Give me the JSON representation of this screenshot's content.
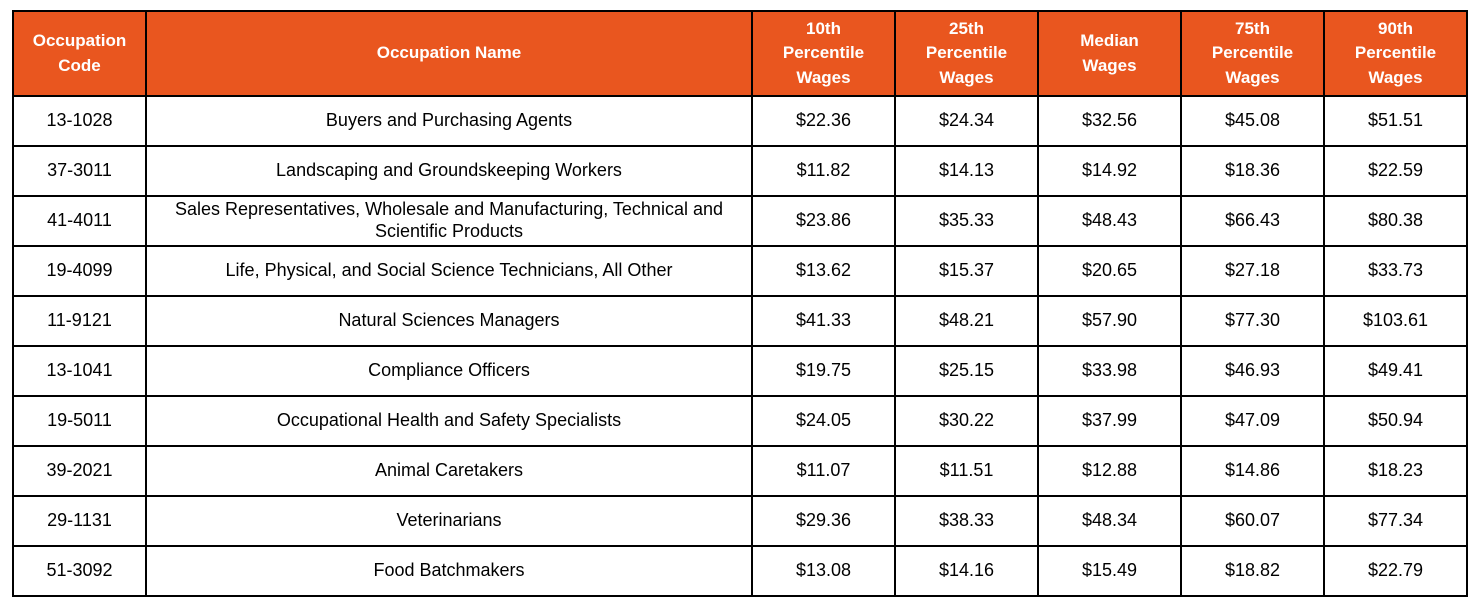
{
  "colors": {
    "header_bg": "#E9561F",
    "header_text": "#FFFFFF",
    "border": "#000000",
    "row_bg": "#FFFFFF",
    "body_text": "#000000"
  },
  "chart_data": {
    "type": "table",
    "columns": [
      "Occupation\nCode",
      "Occupation Name",
      "10th\nPercentile\nWages",
      "25th\nPercentile\nWages",
      "Median\nWages",
      "75th\nPercentile\nWages",
      "90th\nPercentile\nWages"
    ],
    "rows": [
      [
        "13-1028",
        "Buyers and Purchasing Agents",
        "$22.36",
        "$24.34",
        "$32.56",
        "$45.08",
        "$51.51"
      ],
      [
        "37-3011",
        "Landscaping and Groundskeeping Workers",
        "$11.82",
        "$14.13",
        "$14.92",
        "$18.36",
        "$22.59"
      ],
      [
        "41-4011",
        "Sales Representatives, Wholesale and Manufacturing, Technical and Scientific Products",
        "$23.86",
        "$35.33",
        "$48.43",
        "$66.43",
        "$80.38"
      ],
      [
        "19-4099",
        "Life, Physical, and Social Science Technicians, All Other",
        "$13.62",
        "$15.37",
        "$20.65",
        "$27.18",
        "$33.73"
      ],
      [
        "11-9121",
        "Natural Sciences Managers",
        "$41.33",
        "$48.21",
        "$57.90",
        "$77.30",
        "$103.61"
      ],
      [
        "13-1041",
        "Compliance Officers",
        "$19.75",
        "$25.15",
        "$33.98",
        "$46.93",
        "$49.41"
      ],
      [
        "19-5011",
        "Occupational Health and Safety Specialists",
        "$24.05",
        "$30.22",
        "$37.99",
        "$47.09",
        "$50.94"
      ],
      [
        "39-2021",
        "Animal Caretakers",
        "$11.07",
        "$11.51",
        "$12.88",
        "$14.86",
        "$18.23"
      ],
      [
        "29-1131",
        "Veterinarians",
        "$29.36",
        "$38.33",
        "$48.34",
        "$60.07",
        "$77.34"
      ],
      [
        "51-3092",
        "Food Batchmakers",
        "$13.08",
        "$14.16",
        "$15.49",
        "$18.82",
        "$22.79"
      ]
    ]
  }
}
